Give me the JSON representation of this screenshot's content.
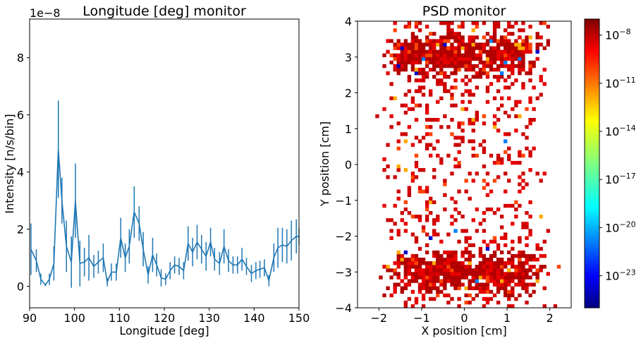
{
  "chart_data": [
    {
      "type": "line",
      "title": "Longitude [deg] monitor",
      "xlabel": "Longitude [deg]",
      "ylabel": "Intensity [n/s/bin]",
      "offset_label": "1e−8",
      "xlim": [
        90,
        150
      ],
      "ylim": [
        -0.75,
        9.35
      ],
      "y_scale_factor": 1e-08,
      "xticks": [
        "90",
        "100",
        "110",
        "120",
        "130",
        "140",
        "150"
      ],
      "yticks": [
        "0",
        "2",
        "4",
        "6",
        "8"
      ],
      "line_color": "#1f77b4",
      "grid": false,
      "series": [
        {
          "x": [
            90.3,
            91.5,
            92.5,
            93.5,
            94.4,
            95.4,
            96.4,
            97.2,
            98.2,
            99.3,
            100.2,
            101.2,
            102.2,
            103.2,
            104.3,
            105.3,
            106.4,
            107.3,
            108.2,
            109.3,
            110.3,
            111.3,
            112.2,
            113.3,
            114.4,
            115.3,
            116.4,
            117.4,
            118.3,
            119.3,
            120.3,
            121.3,
            122.3,
            123.3,
            124.3,
            125.3,
            126.3,
            127.3,
            128.3,
            129.3,
            130.3,
            131.2,
            132.3,
            133.3,
            134.3,
            135.3,
            136.3,
            137.3,
            138.3,
            139.4,
            140.4,
            141.3,
            142.3,
            143.3,
            144.4,
            145.3,
            146.3,
            147.3,
            148.3,
            149.4,
            150.0
          ],
          "y": [
            1.3,
            0.9,
            0.25,
            0.05,
            0.25,
            0.8,
            4.8,
            3.0,
            1.4,
            0.85,
            3.0,
            0.8,
            0.85,
            1.0,
            0.7,
            0.85,
            1.0,
            0.15,
            0.5,
            0.5,
            1.7,
            1.0,
            1.4,
            2.6,
            2.2,
            1.3,
            0.4,
            1.1,
            0.75,
            0.3,
            0.25,
            0.55,
            0.75,
            0.7,
            0.55,
            1.5,
            1.2,
            1.55,
            1.3,
            1.05,
            1.55,
            0.95,
            0.8,
            1.4,
            0.9,
            0.75,
            0.75,
            0.95,
            0.7,
            0.45,
            0.55,
            0.6,
            0.65,
            0.2,
            1.0,
            1.35,
            1.45,
            1.4,
            1.6,
            1.75,
            1.75
          ],
          "err": [
            0.9,
            0.4,
            0.2,
            0.05,
            0.2,
            0.6,
            1.7,
            0.8,
            0.9,
            0.9,
            1.3,
            0.8,
            0.5,
            0.8,
            0.4,
            0.4,
            0.5,
            0.15,
            0.3,
            0.3,
            0.7,
            0.5,
            0.6,
            0.9,
            0.6,
            0.6,
            0.3,
            0.6,
            0.4,
            0.3,
            0.2,
            0.3,
            0.3,
            0.3,
            0.3,
            0.6,
            0.5,
            0.6,
            0.5,
            0.5,
            0.5,
            0.4,
            0.4,
            0.6,
            0.4,
            0.3,
            0.3,
            0.4,
            0.3,
            0.3,
            0.3,
            0.3,
            0.3,
            0.2,
            0.5,
            0.7,
            0.6,
            0.6,
            0.7,
            0.6,
            0.3
          ]
        }
      ]
    },
    {
      "type": "heatmap",
      "title": "PSD monitor",
      "xlabel": "X position [cm]",
      "ylabel": "Y position [cm]",
      "xlim": [
        -2.5,
        2.5
      ],
      "ylim": [
        -4,
        4
      ],
      "xticks": [
        "−2",
        "−1",
        "0",
        "1",
        "2"
      ],
      "yticks": [
        "−4",
        "−3",
        "−2",
        "−1",
        "0",
        "1",
        "2",
        "3",
        "4"
      ],
      "grid_bins": [
        60,
        80
      ],
      "colormap": "jet",
      "colorbar_scale": "log",
      "colorbar_range_exponents": [
        -25,
        -7
      ],
      "colorbar_ticks": [
        "10−8",
        "10−11",
        "10−14",
        "10−17",
        "10−20",
        "10−23"
      ],
      "colorbar_tick_exponents": [
        -8,
        -11,
        -14,
        -17,
        -20,
        -23
      ],
      "dominant_level": "~1e-8 (dark red)",
      "distribution": "dense bands near y ≈ +3 cm and y ≈ −3 cm, sparse speckle elsewhere, cells concentrated within |x| < 1.5 cm"
    }
  ]
}
